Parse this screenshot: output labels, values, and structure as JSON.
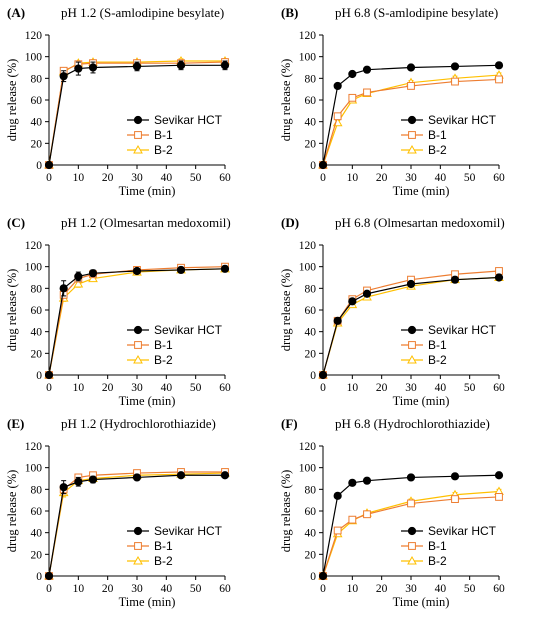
{
  "chart_data": [
    {
      "type": "line",
      "panel_label": "(A)",
      "title": "pH 1.2 (S-amlodipine besylate)",
      "xlabel": "Time (min)",
      "ylabel": "drug release (%)",
      "xlim": [
        0,
        60
      ],
      "ylim": [
        0,
        120
      ],
      "xticks": [
        "0",
        "10",
        "20",
        "30",
        "40",
        "50",
        "60"
      ],
      "yticks": [
        "0",
        "20",
        "40",
        "60",
        "80",
        "100",
        "120"
      ],
      "legend": "lower-right",
      "x": [
        0,
        5,
        10,
        15,
        30,
        45,
        60
      ],
      "series": [
        {
          "name": "Sevikar HCT",
          "color": "#000000",
          "marker": "circle",
          "values": [
            0,
            82,
            89,
            90,
            91,
            92,
            92
          ],
          "error": [
            0,
            5,
            6,
            5,
            4,
            4,
            4
          ]
        },
        {
          "name": "B-1",
          "color": "#ED7D31",
          "marker": "square",
          "values": [
            0,
            87,
            93,
            94,
            94,
            94,
            95
          ],
          "error": [
            0,
            3,
            2,
            2,
            2,
            2,
            2
          ]
        },
        {
          "name": "B-2",
          "color": "#FFC000",
          "marker": "triangle",
          "values": [
            0,
            86,
            94,
            95,
            95,
            96,
            96
          ],
          "error": [
            0,
            2,
            2,
            2,
            2,
            2,
            2
          ]
        }
      ]
    },
    {
      "type": "line",
      "panel_label": "(B)",
      "title": "pH 6.8 (S-amlodipine besylate)",
      "xlabel": "Time (min)",
      "ylabel": "drug release (%)",
      "xlim": [
        0,
        60
      ],
      "ylim": [
        0,
        120
      ],
      "xticks": [
        "0",
        "10",
        "20",
        "30",
        "40",
        "50",
        "60"
      ],
      "yticks": [
        "0",
        "20",
        "40",
        "60",
        "80",
        "100",
        "120"
      ],
      "legend": "lower-right",
      "x": [
        0,
        5,
        10,
        15,
        30,
        45,
        60
      ],
      "series": [
        {
          "name": "Sevikar HCT",
          "color": "#000000",
          "marker": "circle",
          "values": [
            0,
            73,
            84,
            88,
            90,
            91,
            92
          ],
          "error": [
            0,
            2,
            2,
            1,
            1,
            1,
            1
          ]
        },
        {
          "name": "B-1",
          "color": "#ED7D31",
          "marker": "square",
          "values": [
            0,
            45,
            62,
            67,
            73,
            77,
            79
          ],
          "error": [
            0,
            2,
            2,
            2,
            2,
            2,
            2
          ]
        },
        {
          "name": "B-2",
          "color": "#FFC000",
          "marker": "triangle",
          "values": [
            0,
            39,
            60,
            66,
            76,
            80,
            83
          ],
          "error": [
            0,
            2,
            2,
            2,
            2,
            2,
            2
          ]
        }
      ]
    },
    {
      "type": "line",
      "panel_label": "(C)",
      "title": "pH 1.2 (Olmesartan medoxomil)",
      "xlabel": "Time (min)",
      "ylabel": "drug release (%)",
      "xlim": [
        0,
        60
      ],
      "ylim": [
        0,
        120
      ],
      "xticks": [
        "0",
        "10",
        "20",
        "30",
        "40",
        "50",
        "60"
      ],
      "yticks": [
        "0",
        "20",
        "40",
        "60",
        "80",
        "100",
        "120"
      ],
      "legend": "lower-right",
      "x": [
        0,
        5,
        10,
        15,
        30,
        45,
        60
      ],
      "series": [
        {
          "name": "Sevikar HCT",
          "color": "#000000",
          "marker": "circle",
          "values": [
            0,
            80,
            91,
            94,
            96,
            97,
            98
          ],
          "error": [
            0,
            7,
            4,
            3,
            2,
            2,
            2
          ]
        },
        {
          "name": "B-1",
          "color": "#ED7D31",
          "marker": "square",
          "values": [
            0,
            74,
            89,
            93,
            97,
            99,
            100
          ],
          "error": [
            0,
            3,
            3,
            2,
            2,
            2,
            2
          ]
        },
        {
          "name": "B-2",
          "color": "#FFC000",
          "marker": "triangle",
          "values": [
            0,
            71,
            84,
            89,
            95,
            97,
            98
          ],
          "error": [
            0,
            3,
            3,
            2,
            2,
            2,
            2
          ]
        }
      ]
    },
    {
      "type": "line",
      "panel_label": "(D)",
      "title": "pH 6.8 (Olmesartan medoxomil)",
      "xlabel": "Time (min)",
      "ylabel": "drug release (%)",
      "xlim": [
        0,
        60
      ],
      "ylim": [
        0,
        120
      ],
      "xticks": [
        "0",
        "10",
        "20",
        "30",
        "40",
        "50",
        "60"
      ],
      "yticks": [
        "0",
        "20",
        "40",
        "60",
        "80",
        "100",
        "120"
      ],
      "legend": "lower-right",
      "x": [
        0,
        5,
        10,
        15,
        30,
        45,
        60
      ],
      "series": [
        {
          "name": "Sevikar HCT",
          "color": "#000000",
          "marker": "circle",
          "values": [
            0,
            50,
            68,
            75,
            84,
            88,
            90
          ],
          "error": [
            0,
            2,
            2,
            2,
            2,
            2,
            2
          ]
        },
        {
          "name": "B-1",
          "color": "#ED7D31",
          "marker": "square",
          "values": [
            0,
            50,
            70,
            78,
            88,
            93,
            96
          ],
          "error": [
            0,
            2,
            2,
            2,
            2,
            2,
            2
          ]
        },
        {
          "name": "B-2",
          "color": "#FFC000",
          "marker": "triangle",
          "values": [
            0,
            48,
            65,
            72,
            82,
            88,
            90
          ],
          "error": [
            0,
            2,
            2,
            2,
            2,
            2,
            2
          ]
        }
      ]
    },
    {
      "type": "line",
      "panel_label": "(E)",
      "title": "pH 1.2 (Hydrochlorothiazide)",
      "xlabel": "Time (min)",
      "ylabel": "drug release (%)",
      "xlim": [
        0,
        60
      ],
      "ylim": [
        0,
        120
      ],
      "xticks": [
        "0",
        "10",
        "20",
        "30",
        "40",
        "50",
        "60"
      ],
      "yticks": [
        "0",
        "20",
        "40",
        "60",
        "80",
        "100",
        "120"
      ],
      "legend": "lower-right",
      "x": [
        0,
        5,
        10,
        15,
        30,
        45,
        60
      ],
      "series": [
        {
          "name": "Sevikar HCT",
          "color": "#000000",
          "marker": "circle",
          "values": [
            0,
            82,
            87,
            89,
            91,
            93,
            93
          ],
          "error": [
            0,
            6,
            4,
            3,
            2,
            2,
            2
          ]
        },
        {
          "name": "B-1",
          "color": "#ED7D31",
          "marker": "square",
          "values": [
            0,
            80,
            91,
            93,
            95,
            96,
            96
          ],
          "error": [
            0,
            4,
            3,
            2,
            2,
            2,
            2
          ]
        },
        {
          "name": "B-2",
          "color": "#FFC000",
          "marker": "triangle",
          "values": [
            0,
            77,
            88,
            90,
            93,
            94,
            95
          ],
          "error": [
            0,
            4,
            3,
            2,
            2,
            2,
            2
          ]
        }
      ]
    },
    {
      "type": "line",
      "panel_label": "(F)",
      "title": "pH 6.8 (Hydrochlorothiazide)",
      "xlabel": "Time (min)",
      "ylabel": "drug release (%)",
      "xlim": [
        0,
        60
      ],
      "ylim": [
        0,
        120
      ],
      "xticks": [
        "0",
        "10",
        "20",
        "30",
        "40",
        "50",
        "60"
      ],
      "yticks": [
        "0",
        "20",
        "40",
        "60",
        "80",
        "100",
        "120"
      ],
      "legend": "lower-right",
      "x": [
        0,
        5,
        10,
        15,
        30,
        45,
        60
      ],
      "series": [
        {
          "name": "Sevikar HCT",
          "color": "#000000",
          "marker": "circle",
          "values": [
            0,
            74,
            86,
            88,
            91,
            92,
            93
          ],
          "error": [
            0,
            2,
            2,
            1,
            1,
            1,
            1
          ]
        },
        {
          "name": "B-1",
          "color": "#ED7D31",
          "marker": "square",
          "values": [
            0,
            42,
            52,
            57,
            67,
            71,
            73
          ],
          "error": [
            0,
            2,
            2,
            2,
            2,
            2,
            2
          ]
        },
        {
          "name": "B-2",
          "color": "#FFC000",
          "marker": "triangle",
          "values": [
            0,
            39,
            51,
            58,
            69,
            75,
            78
          ],
          "error": [
            0,
            2,
            2,
            2,
            2,
            2,
            2
          ]
        }
      ]
    }
  ]
}
